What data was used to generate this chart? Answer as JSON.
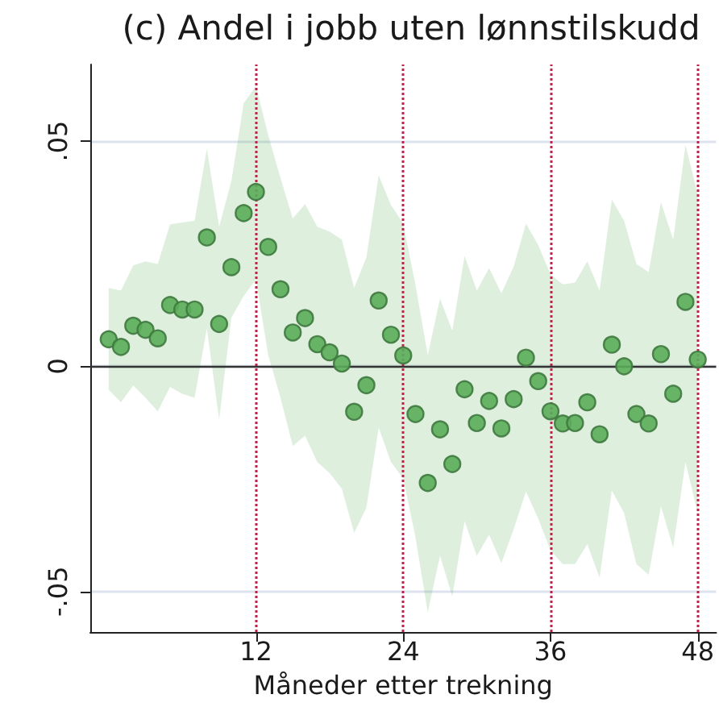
{
  "chart_data": {
    "type": "scatter",
    "title": "(c) Andel i jobb uten lønnstilskudd",
    "xlabel": "Måneder etter trekning",
    "x": [
      0,
      1,
      2,
      3,
      4,
      5,
      6,
      7,
      8,
      9,
      10,
      11,
      12,
      13,
      14,
      15,
      16,
      17,
      18,
      19,
      20,
      21,
      22,
      23,
      24,
      25,
      26,
      27,
      28,
      29,
      30,
      31,
      32,
      33,
      34,
      35,
      36,
      37,
      38,
      39,
      40,
      41,
      42,
      43,
      44,
      45,
      46,
      47,
      48
    ],
    "series": [
      {
        "color": "#5aad5a",
        "values": [
          0.006,
          0.0043,
          0.009,
          0.0081,
          0.0062,
          0.0136,
          0.0126,
          0.0126,
          0.0286,
          0.0094,
          0.022,
          0.034,
          0.0387,
          0.0265,
          0.0171,
          0.0075,
          0.0107,
          0.0049,
          0.0031,
          0.0006,
          -0.0101,
          -0.0042,
          0.0146,
          0.007,
          0.0024,
          -0.0106,
          -0.0259,
          -0.014,
          -0.0217,
          -0.0051,
          -0.0126,
          -0.0077,
          -0.0138,
          -0.0073,
          0.0019,
          -0.0033,
          -0.01,
          -0.0127,
          -0.0126,
          -0.008,
          -0.0151,
          0.0048,
          0,
          -0.0106,
          -0.0127,
          0.0027,
          -0.0061,
          0.0143,
          0.0015
        ],
        "lower": [
          -0.0052,
          -0.008,
          -0.0043,
          -0.007,
          -0.01,
          -0.0046,
          -0.0061,
          -0.007,
          0.0084,
          -0.0118,
          0.0108,
          0.0156,
          0.0192,
          0.0025,
          -0.007,
          -0.0177,
          -0.0154,
          -0.0213,
          -0.0237,
          -0.0272,
          -0.037,
          -0.0314,
          -0.0136,
          -0.0213,
          -0.0249,
          -0.038,
          -0.0546,
          -0.0421,
          -0.0511,
          -0.0344,
          -0.0421,
          -0.0374,
          -0.0437,
          -0.0362,
          -0.0278,
          -0.0338,
          -0.0409,
          -0.0439,
          -0.0439,
          -0.0395,
          -0.0469,
          -0.0276,
          -0.0326,
          -0.0439,
          -0.0463,
          -0.0311,
          -0.0403,
          -0.0213,
          -0.0326
        ],
        "upper": [
          0.0174,
          0.0168,
          0.0224,
          0.0233,
          0.0227,
          0.0315,
          0.0319,
          0.0323,
          0.0483,
          0.031,
          0.0412,
          0.0584,
          0.0622,
          0.0513,
          0.0418,
          0.0328,
          0.036,
          0.031,
          0.0299,
          0.0281,
          0.0174,
          0.0242,
          0.0424,
          0.0358,
          0.0317,
          0.018,
          0.0025,
          0.015,
          0.0079,
          0.0245,
          0.0168,
          0.0218,
          0.0162,
          0.0221,
          0.0317,
          0.0269,
          0.0204,
          0.0182,
          0.0186,
          0.0233,
          0.0168,
          0.037,
          0.0323,
          0.0227,
          0.0209,
          0.0364,
          0.0281,
          0.0491,
          0.0382
        ]
      }
    ],
    "xlim": [
      -1.5,
      49.5
    ],
    "xticks": [
      12,
      24,
      36,
      48
    ],
    "ylim": [
      -0.059,
      0.067
    ],
    "yticks": [
      {
        "value": -0.05,
        "label": "-.05"
      },
      {
        "value": 0,
        "label": "0"
      },
      {
        "value": 0.05,
        "label": ".05"
      }
    ],
    "ref_lines": [
      {
        "axis": "y",
        "value": 0,
        "color": "#333333",
        "line_style": "solid"
      },
      {
        "axis": "x",
        "value": 12,
        "color": "#c0204a",
        "line_style": "dotted"
      },
      {
        "axis": "x",
        "value": 24,
        "color": "#c0204a",
        "line_style": "dotted"
      },
      {
        "axis": "x",
        "value": 36,
        "color": "#c0204a",
        "line_style": "dotted"
      },
      {
        "axis": "x",
        "value": 48,
        "color": "#c0204a",
        "line_style": "dotted"
      }
    ],
    "grid": "y",
    "marker": "circle"
  }
}
